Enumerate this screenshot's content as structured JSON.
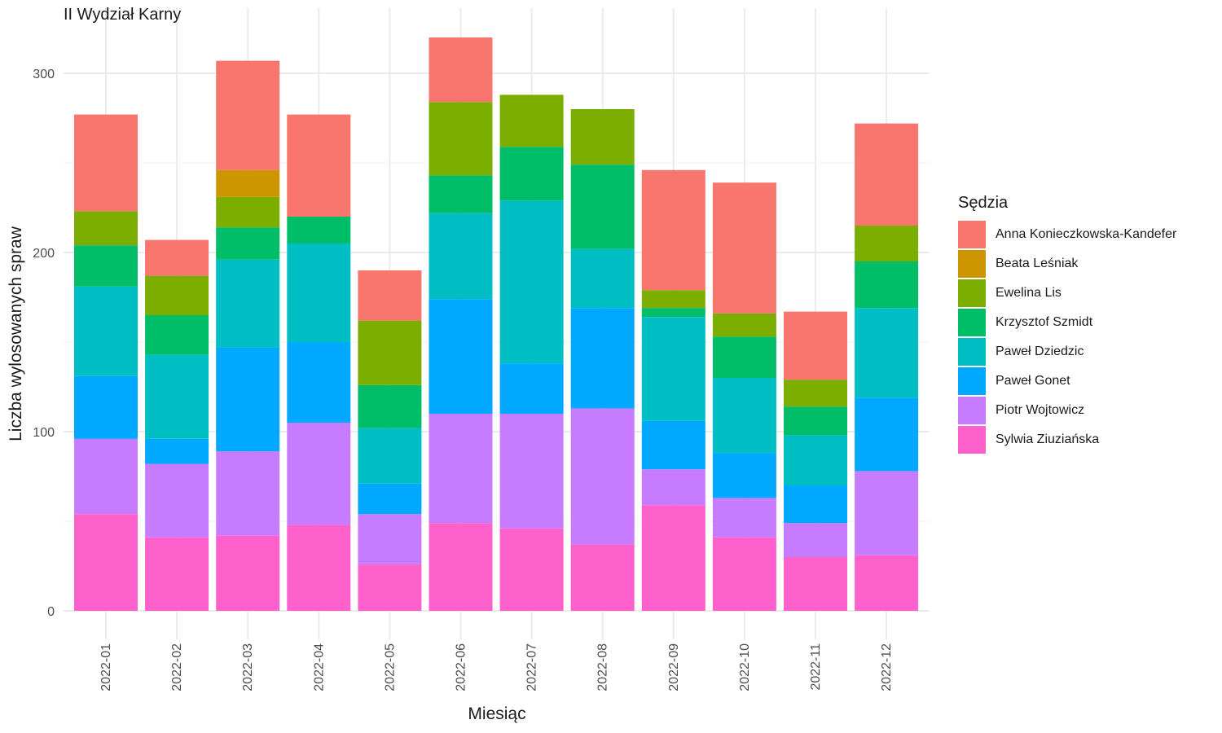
{
  "chart_data": {
    "type": "bar",
    "stacked": true,
    "title": "II Wydział Karny",
    "xlabel": "Miesiąc",
    "ylabel": "Liczba wylosowanych spraw",
    "ylim": [
      0,
      320
    ],
    "yticks": [
      0,
      100,
      200,
      300
    ],
    "grid": true,
    "legend_title": "Sędzia",
    "legend_position": "right",
    "categories": [
      "2022-01",
      "2022-02",
      "2022-03",
      "2022-04",
      "2022-05",
      "2022-06",
      "2022-07",
      "2022-08",
      "2022-09",
      "2022-10",
      "2022-11",
      "2022-12"
    ],
    "series": [
      {
        "name": "Anna Konieczkowska-Kandefer",
        "color": "#F8766D",
        "values": [
          54,
          20,
          61,
          57,
          28,
          36,
          0,
          0,
          67,
          73,
          38,
          57
        ]
      },
      {
        "name": "Beata Leśniak",
        "color": "#CD9600",
        "values": [
          0,
          0,
          15,
          0,
          0,
          0,
          0,
          0,
          0,
          0,
          0,
          0
        ]
      },
      {
        "name": "Ewelina Lis",
        "color": "#7CAE00",
        "values": [
          19,
          22,
          17,
          0,
          36,
          41,
          29,
          31,
          10,
          13,
          15,
          20
        ]
      },
      {
        "name": "Krzysztof Szmidt",
        "color": "#00BE67",
        "values": [
          23,
          22,
          18,
          15,
          24,
          21,
          30,
          47,
          5,
          23,
          16,
          26
        ]
      },
      {
        "name": "Paweł Dziedzic",
        "color": "#00BFC4",
        "values": [
          50,
          47,
          49,
          55,
          31,
          48,
          91,
          33,
          58,
          42,
          28,
          50
        ]
      },
      {
        "name": "Paweł Gonet",
        "color": "#00A9FF",
        "values": [
          35,
          14,
          58,
          45,
          17,
          64,
          28,
          56,
          27,
          25,
          21,
          41
        ]
      },
      {
        "name": "Piotr Wojtowicz",
        "color": "#C77CFF",
        "values": [
          42,
          41,
          47,
          57,
          28,
          61,
          64,
          76,
          20,
          22,
          19,
          47
        ]
      },
      {
        "name": "Sylwia Ziuziańska",
        "color": "#FF61CC",
        "values": [
          54,
          41,
          42,
          48,
          26,
          49,
          46,
          37,
          59,
          41,
          30,
          31
        ]
      }
    ]
  }
}
